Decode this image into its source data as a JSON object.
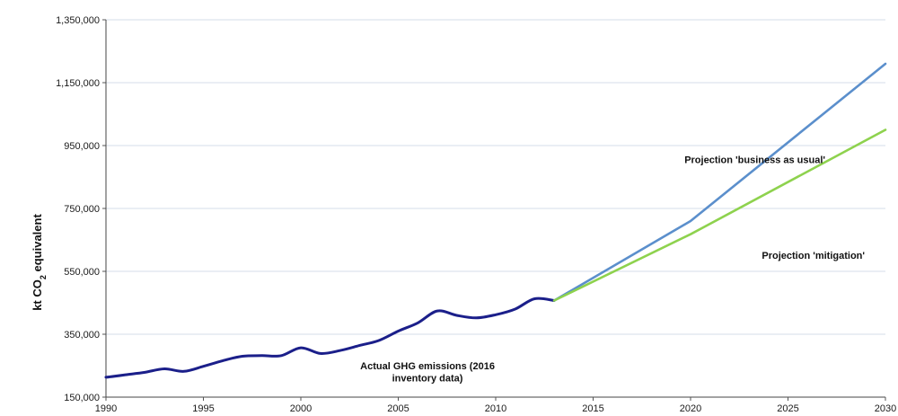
{
  "chart_data": {
    "type": "line",
    "title": "",
    "ylabel": "kt CO2 equivalent",
    "ylabel_parts": {
      "main": "kt CO",
      "sub": "2",
      "rest": " equivalent"
    },
    "xlim": [
      1990,
      2030
    ],
    "ylim": [
      150000,
      1350000
    ],
    "x_ticks": [
      "1990",
      "1995",
      "2000",
      "2005",
      "2010",
      "2015",
      "2020",
      "2025",
      "2030"
    ],
    "x_tick_values": [
      1990,
      1995,
      2000,
      2005,
      2010,
      2015,
      2020,
      2025,
      2030
    ],
    "y_ticks": [
      "150,000",
      "350,000",
      "550,000",
      "750,000",
      "950,000",
      "1,150,000",
      "1,350,000"
    ],
    "y_tick_values": [
      150000,
      350000,
      550000,
      750000,
      950000,
      1150000,
      1350000
    ],
    "grid": "horizontal",
    "series": [
      {
        "color": "#1b1f8a",
        "x": [
          1990,
          1991,
          1992,
          1993,
          1994,
          1995,
          1996,
          1997,
          1998,
          1999,
          2000,
          2001,
          2002,
          2003,
          2004,
          2005,
          2006,
          2007,
          2008,
          2009,
          2010,
          2011,
          2012,
          2013
        ],
        "y": [
          213000,
          221000,
          229000,
          240000,
          232000,
          248000,
          266000,
          280000,
          282000,
          282000,
          307000,
          289000,
          298000,
          314000,
          330000,
          360000,
          386000,
          424000,
          410000,
          402000,
          412000,
          430000,
          463000,
          457000
        ]
      },
      {
        "color": "#5b8fcc",
        "x": [
          2013,
          2020,
          2030
        ],
        "y": [
          457000,
          710000,
          1210000
        ]
      },
      {
        "color": "#8ed24e",
        "x": [
          2013,
          2020,
          2030
        ],
        "y": [
          457000,
          668000,
          1000000
        ]
      }
    ],
    "annotations": [
      {
        "text": "Projection 'business as usual'",
        "x": 2023.3,
        "y": 895000
      },
      {
        "text": "Projection 'mitigation'",
        "x": 2026.3,
        "y": 590000
      },
      {
        "text": "Actual GHG emissions  (2016",
        "x": 2006.5,
        "y": 238000
      },
      {
        "text": "inventory data)",
        "x": 2006.5,
        "y": 200000
      }
    ]
  }
}
